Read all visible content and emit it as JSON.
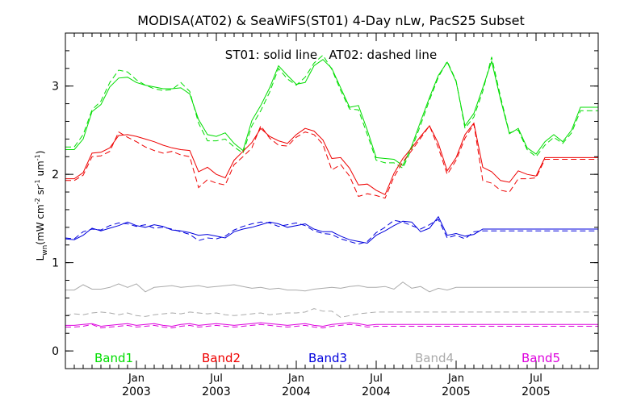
{
  "chart_data": {
    "type": "line",
    "title": "MODISA(AT02) & SeaWiFS(ST01) 4-Day nLw, PacS25 Subset",
    "annotation": "ST01: solid line   AT02: dashed line",
    "ylabel_main": "L",
    "ylabel_sub": "wn",
    "ylabel_units": {
      "open": "(mW cm",
      "exp1": "-2",
      "mid1": " sr",
      "exp2": "-1",
      "mid2": " um",
      "exp3": "-1",
      "close": ")"
    },
    "ylim": [
      -0.2,
      3.6
    ],
    "yticks": [
      {
        "v": 0,
        "label": "0"
      },
      {
        "v": 1,
        "label": "1"
      },
      {
        "v": 2,
        "label": "2"
      },
      {
        "v": 3,
        "label": "3"
      }
    ],
    "xlim": [
      0,
      60
    ],
    "xticks": [
      {
        "t": 8,
        "l1": "Jan",
        "l2": "2003"
      },
      {
        "t": 17,
        "l1": "Jul",
        "l2": "2003"
      },
      {
        "t": 26,
        "l1": "Jan",
        "l2": "2004"
      },
      {
        "t": 35,
        "l1": "Jul",
        "l2": "2004"
      },
      {
        "t": 44,
        "l1": "Jan",
        "l2": "2005"
      },
      {
        "t": 53,
        "l1": "Jul",
        "l2": "2005"
      }
    ],
    "x_unit_note": "x values in months, 0 = Sep 2002",
    "x": [
      0,
      1,
      2,
      3,
      4,
      5,
      6,
      7,
      8,
      9,
      10,
      11,
      12,
      13,
      14,
      15,
      16,
      17,
      18,
      19,
      20,
      21,
      22,
      23,
      24,
      25,
      26,
      27,
      28,
      29,
      30,
      31,
      32,
      33,
      34,
      35,
      36,
      37,
      38,
      39,
      40,
      41,
      42,
      43,
      44,
      45,
      46,
      47,
      48,
      49,
      50,
      51,
      52,
      53,
      54,
      55,
      56,
      57,
      58,
      59,
      60
    ],
    "series": [
      {
        "name": "Band1",
        "color": "#00dd00",
        "solid": [
          2.28,
          2.28,
          2.4,
          2.71,
          2.79,
          2.99,
          3.09,
          3.1,
          3.04,
          3.01,
          2.99,
          2.97,
          2.97,
          2.98,
          2.91,
          2.62,
          2.45,
          2.43,
          2.47,
          2.35,
          2.27,
          2.61,
          2.78,
          2.98,
          3.23,
          3.12,
          3.02,
          3.04,
          3.23,
          3.3,
          3.2,
          2.98,
          2.76,
          2.78,
          2.5,
          2.19,
          2.18,
          2.17,
          2.1,
          2.32,
          2.6,
          2.87,
          3.12,
          3.27,
          3.05,
          2.55,
          2.69,
          2.98,
          3.28,
          2.85,
          2.46,
          2.52,
          2.3,
          2.23,
          2.37,
          2.45,
          2.37,
          2.5,
          2.76,
          2.76,
          2.76
        ],
        "dashed": [
          2.31,
          2.31,
          2.45,
          2.73,
          2.83,
          3.04,
          3.18,
          3.16,
          3.07,
          3.01,
          2.97,
          2.95,
          2.96,
          3.04,
          2.94,
          2.58,
          2.38,
          2.38,
          2.4,
          2.31,
          2.24,
          2.55,
          2.72,
          2.93,
          3.2,
          3.08,
          3.01,
          3.1,
          3.26,
          3.35,
          3.19,
          2.95,
          2.74,
          2.73,
          2.45,
          2.16,
          2.13,
          2.13,
          2.07,
          2.29,
          2.56,
          2.84,
          3.1,
          3.28,
          3.06,
          2.52,
          2.65,
          2.94,
          3.33,
          2.88,
          2.47,
          2.5,
          2.28,
          2.2,
          2.33,
          2.42,
          2.35,
          2.47,
          2.72,
          2.72,
          2.72
        ]
      },
      {
        "name": "Band2",
        "color": "#ee0000",
        "solid": [
          1.95,
          1.95,
          2.02,
          2.24,
          2.25,
          2.3,
          2.44,
          2.45,
          2.43,
          2.4,
          2.37,
          2.33,
          2.3,
          2.28,
          2.27,
          2.03,
          2.08,
          2.0,
          1.96,
          2.16,
          2.26,
          2.36,
          2.52,
          2.43,
          2.38,
          2.35,
          2.45,
          2.52,
          2.49,
          2.39,
          2.18,
          2.19,
          2.07,
          1.88,
          1.89,
          1.82,
          1.77,
          2.01,
          2.18,
          2.3,
          2.43,
          2.55,
          2.35,
          2.04,
          2.19,
          2.45,
          2.58,
          2.08,
          2.03,
          1.93,
          1.91,
          2.04,
          2.0,
          1.98,
          2.19,
          2.19,
          2.19,
          2.19,
          2.19,
          2.19,
          2.19
        ],
        "dashed": [
          1.93,
          1.93,
          1.99,
          2.2,
          2.21,
          2.26,
          2.48,
          2.42,
          2.37,
          2.31,
          2.27,
          2.24,
          2.26,
          2.22,
          2.2,
          1.85,
          1.94,
          1.9,
          1.88,
          2.11,
          2.2,
          2.3,
          2.55,
          2.41,
          2.33,
          2.32,
          2.42,
          2.48,
          2.45,
          2.34,
          2.05,
          2.11,
          1.98,
          1.75,
          1.78,
          1.76,
          1.73,
          1.97,
          2.14,
          2.27,
          2.41,
          2.55,
          2.3,
          2.0,
          2.16,
          2.41,
          2.57,
          1.93,
          1.9,
          1.82,
          1.8,
          1.95,
          1.95,
          1.96,
          2.17,
          2.17,
          2.17,
          2.17,
          2.17,
          2.17,
          2.17
        ]
      },
      {
        "name": "Band3",
        "color": "#0000dd",
        "solid": [
          1.27,
          1.26,
          1.31,
          1.39,
          1.36,
          1.39,
          1.42,
          1.46,
          1.42,
          1.4,
          1.43,
          1.41,
          1.37,
          1.36,
          1.34,
          1.31,
          1.32,
          1.3,
          1.28,
          1.35,
          1.38,
          1.4,
          1.43,
          1.46,
          1.44,
          1.4,
          1.42,
          1.44,
          1.38,
          1.35,
          1.35,
          1.3,
          1.26,
          1.24,
          1.22,
          1.31,
          1.36,
          1.42,
          1.47,
          1.46,
          1.35,
          1.39,
          1.52,
          1.31,
          1.33,
          1.3,
          1.32,
          1.38,
          1.38,
          1.38,
          1.38,
          1.38,
          1.38,
          1.38,
          1.38,
          1.38,
          1.38,
          1.38,
          1.38,
          1.38,
          1.38
        ],
        "dashed": [
          1.28,
          1.27,
          1.35,
          1.38,
          1.37,
          1.42,
          1.45,
          1.44,
          1.41,
          1.43,
          1.39,
          1.4,
          1.38,
          1.35,
          1.32,
          1.25,
          1.28,
          1.27,
          1.3,
          1.37,
          1.41,
          1.44,
          1.46,
          1.45,
          1.41,
          1.43,
          1.45,
          1.42,
          1.36,
          1.33,
          1.32,
          1.27,
          1.24,
          1.21,
          1.24,
          1.34,
          1.4,
          1.48,
          1.46,
          1.42,
          1.38,
          1.43,
          1.49,
          1.28,
          1.31,
          1.27,
          1.35,
          1.36,
          1.36,
          1.36,
          1.36,
          1.36,
          1.36,
          1.36,
          1.36,
          1.36,
          1.36,
          1.36,
          1.36,
          1.36,
          1.36
        ]
      },
      {
        "name": "Band4",
        "color": "#aaaaaa",
        "solid": [
          0.69,
          0.69,
          0.75,
          0.7,
          0.7,
          0.72,
          0.76,
          0.72,
          0.76,
          0.67,
          0.72,
          0.73,
          0.74,
          0.72,
          0.73,
          0.74,
          0.72,
          0.73,
          0.74,
          0.75,
          0.73,
          0.71,
          0.72,
          0.7,
          0.71,
          0.69,
          0.69,
          0.68,
          0.7,
          0.71,
          0.72,
          0.71,
          0.73,
          0.74,
          0.72,
          0.72,
          0.73,
          0.7,
          0.78,
          0.71,
          0.73,
          0.67,
          0.71,
          0.69,
          0.72,
          0.72,
          0.72,
          0.72,
          0.72,
          0.72,
          0.72,
          0.72,
          0.72,
          0.72,
          0.72,
          0.72,
          0.72,
          0.72,
          0.72,
          0.72,
          0.72
        ],
        "dashed": [
          0.4,
          0.42,
          0.41,
          0.43,
          0.44,
          0.43,
          0.41,
          0.43,
          0.4,
          0.39,
          0.41,
          0.42,
          0.43,
          0.42,
          0.44,
          0.43,
          0.42,
          0.43,
          0.41,
          0.4,
          0.41,
          0.42,
          0.43,
          0.41,
          0.42,
          0.43,
          0.43,
          0.44,
          0.48,
          0.45,
          0.45,
          0.38,
          0.4,
          0.42,
          0.43,
          0.44,
          0.44,
          0.44,
          0.44,
          0.44,
          0.44,
          0.44,
          0.44,
          0.44,
          0.44,
          0.44,
          0.44,
          0.44,
          0.44,
          0.44,
          0.44,
          0.44,
          0.44,
          0.44,
          0.44,
          0.44,
          0.44,
          0.44,
          0.44,
          0.44,
          0.44
        ]
      },
      {
        "name": "Band5",
        "color": "#dd00dd",
        "solid": [
          0.29,
          0.29,
          0.3,
          0.31,
          0.28,
          0.29,
          0.3,
          0.31,
          0.29,
          0.3,
          0.31,
          0.29,
          0.28,
          0.3,
          0.31,
          0.29,
          0.3,
          0.31,
          0.3,
          0.29,
          0.3,
          0.31,
          0.32,
          0.31,
          0.3,
          0.29,
          0.3,
          0.31,
          0.29,
          0.28,
          0.3,
          0.31,
          0.32,
          0.31,
          0.29,
          0.3,
          0.3,
          0.3,
          0.3,
          0.3,
          0.3,
          0.3,
          0.3,
          0.3,
          0.3,
          0.3,
          0.3,
          0.3,
          0.3,
          0.3,
          0.3,
          0.3,
          0.3,
          0.3,
          0.3,
          0.3,
          0.3,
          0.3,
          0.3,
          0.3,
          0.3
        ],
        "dashed": [
          0.27,
          0.27,
          0.28,
          0.3,
          0.26,
          0.27,
          0.28,
          0.29,
          0.27,
          0.28,
          0.29,
          0.27,
          0.26,
          0.28,
          0.29,
          0.27,
          0.28,
          0.29,
          0.28,
          0.27,
          0.28,
          0.29,
          0.3,
          0.29,
          0.28,
          0.27,
          0.28,
          0.29,
          0.27,
          0.26,
          0.28,
          0.29,
          0.3,
          0.29,
          0.27,
          0.28,
          0.28,
          0.28,
          0.28,
          0.28,
          0.28,
          0.28,
          0.28,
          0.28,
          0.28,
          0.28,
          0.28,
          0.28,
          0.28,
          0.28,
          0.28,
          0.28,
          0.28,
          0.28,
          0.28,
          0.28,
          0.28,
          0.28,
          0.28,
          0.28,
          0.28
        ]
      }
    ]
  }
}
